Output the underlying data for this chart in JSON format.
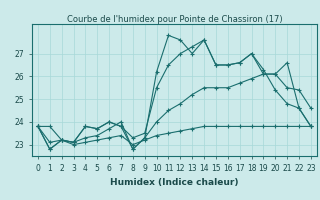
{
  "title": "Courbe de l'humidex pour Pointe de Chassiron (17)",
  "xlabel": "Humidex (Indice chaleur)",
  "bg_color": "#cceaea",
  "line_color": "#1a6e6e",
  "grid_color": "#a8d8d8",
  "xlim": [
    -0.5,
    23.5
  ],
  "ylim": [
    22.5,
    28.3
  ],
  "xticks": [
    0,
    1,
    2,
    3,
    4,
    5,
    6,
    7,
    8,
    9,
    10,
    11,
    12,
    13,
    14,
    15,
    16,
    17,
    18,
    19,
    20,
    21,
    22,
    23
  ],
  "yticks": [
    23,
    24,
    25,
    26,
    27
  ],
  "series1": [
    23.8,
    22.8,
    23.2,
    23.1,
    23.8,
    23.7,
    24.0,
    23.8,
    22.8,
    23.3,
    26.2,
    27.8,
    27.6,
    27.0,
    27.6,
    26.5,
    26.5,
    26.6,
    27.0,
    26.1,
    26.1,
    26.6,
    24.6,
    23.8
  ],
  "series2": [
    23.8,
    22.8,
    23.2,
    23.1,
    23.8,
    23.7,
    24.0,
    23.8,
    23.3,
    23.5,
    25.5,
    26.5,
    27.0,
    27.3,
    27.6,
    26.5,
    26.5,
    26.6,
    27.0,
    26.3,
    25.4,
    24.8,
    24.6,
    23.8
  ],
  "series3": [
    23.8,
    23.8,
    23.2,
    23.1,
    23.3,
    23.4,
    23.7,
    24.0,
    22.8,
    23.3,
    24.0,
    24.5,
    24.8,
    25.2,
    25.5,
    25.5,
    25.5,
    25.7,
    25.9,
    26.1,
    26.1,
    25.5,
    25.4,
    24.6
  ],
  "series4": [
    23.8,
    23.1,
    23.2,
    23.0,
    23.1,
    23.2,
    23.3,
    23.4,
    23.0,
    23.2,
    23.4,
    23.5,
    23.6,
    23.7,
    23.8,
    23.8,
    23.8,
    23.8,
    23.8,
    23.8,
    23.8,
    23.8,
    23.8,
    23.8
  ],
  "marker": "+",
  "marker_size": 3,
  "line_width": 0.8,
  "title_fontsize": 6,
  "xlabel_fontsize": 6.5,
  "tick_fontsize": 5.5
}
